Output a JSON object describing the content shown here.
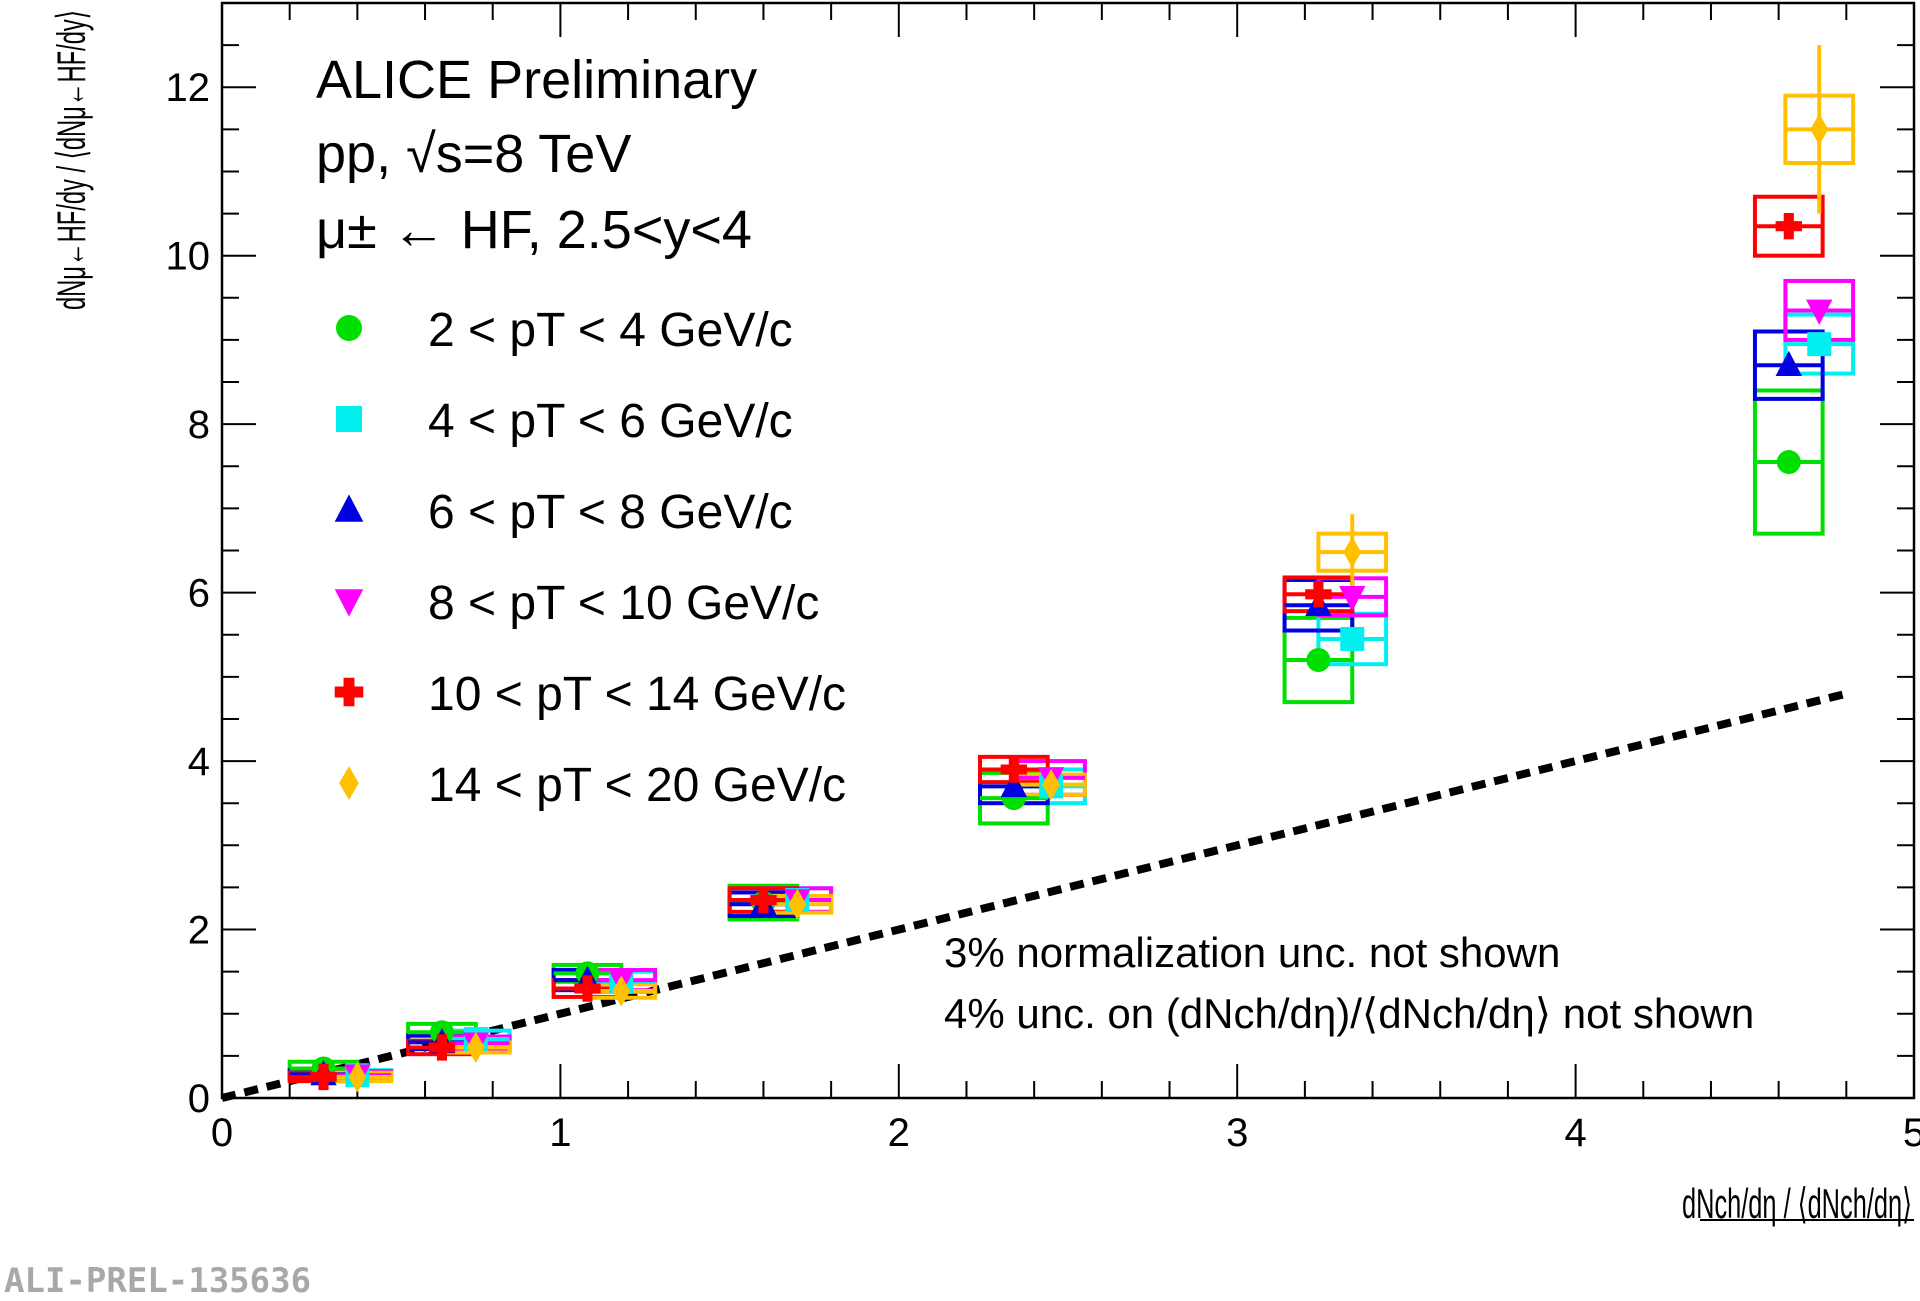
{
  "chart_data": {
    "type": "scatter",
    "title": "ALICE Preliminary",
    "subtitle_1": "pp, √s=8 TeV",
    "subtitle_2": "μ± ← HF, 2.5<y<4",
    "xlabel": "dNch/dη / ⟨dNch/dη⟩",
    "ylabel": "dNμ←HF/dy / ⟨dNμ←HF/dy⟩",
    "xlim": [
      0,
      5
    ],
    "ylim": [
      0,
      13
    ],
    "xticks": [
      "0",
      "1",
      "2",
      "3",
      "4",
      "5"
    ],
    "yticks": [
      "0",
      "2",
      "4",
      "6",
      "8",
      "10",
      "12"
    ],
    "legend_position": "top-left",
    "series": [
      {
        "name": "2 < pT < 4 GeV/c",
        "color": "#00e000",
        "marker": "circle",
        "x": [
          0.3,
          0.65,
          1.08,
          1.6,
          2.34,
          3.24,
          4.63
        ],
        "y": [
          0.35,
          0.78,
          1.48,
          2.32,
          3.56,
          5.2,
          7.55
        ],
        "sys": [
          0.08,
          0.1,
          0.1,
          0.2,
          0.3,
          0.5,
          0.85
        ]
      },
      {
        "name": "4 < pT < 6 GeV/c",
        "color": "#00f0f0",
        "marker": "square",
        "x": [
          0.4,
          0.75,
          1.18,
          1.7,
          2.45,
          3.34,
          4.72
        ],
        "y": [
          0.27,
          0.7,
          1.38,
          2.35,
          3.7,
          5.45,
          8.95
        ],
        "sys": [
          0.06,
          0.1,
          0.12,
          0.14,
          0.2,
          0.3,
          0.35
        ]
      },
      {
        "name": "6 < pT < 8 GeV/c",
        "color": "#0000e0",
        "marker": "triangle-up",
        "x": [
          0.3,
          0.65,
          1.08,
          1.6,
          2.34,
          3.24,
          4.63
        ],
        "y": [
          0.28,
          0.66,
          1.4,
          2.3,
          3.7,
          5.85,
          8.7
        ],
        "sys": [
          0.05,
          0.08,
          0.12,
          0.14,
          0.2,
          0.3,
          0.4
        ]
      },
      {
        "name": "8 < pT < 10 GeV/c",
        "color": "#ff00ff",
        "marker": "triangle-down",
        "x": [
          0.4,
          0.75,
          1.18,
          1.7,
          2.45,
          3.34,
          4.72
        ],
        "y": [
          0.27,
          0.65,
          1.4,
          2.35,
          3.8,
          5.95,
          9.35
        ],
        "sys": [
          0.05,
          0.08,
          0.12,
          0.14,
          0.2,
          0.22,
          0.35
        ]
      },
      {
        "name": "10 < pT < 14 GeV/c",
        "color": "#ff0000",
        "marker": "cross",
        "x": [
          0.3,
          0.65,
          1.08,
          1.6,
          2.34,
          3.24,
          4.63
        ],
        "y": [
          0.25,
          0.6,
          1.3,
          2.35,
          3.9,
          5.98,
          10.35
        ],
        "sys": [
          0.05,
          0.08,
          0.1,
          0.14,
          0.15,
          0.2,
          0.35
        ]
      },
      {
        "name": "14 < pT < 20 GeV/c",
        "color": "#ffc000",
        "marker": "diamond",
        "x": [
          0.4,
          0.75,
          1.18,
          1.7,
          2.45,
          3.34,
          4.72
        ],
        "y": [
          0.25,
          0.6,
          1.27,
          2.3,
          3.72,
          6.48,
          11.5
        ],
        "sys": [
          0.05,
          0.06,
          0.08,
          0.1,
          0.12,
          0.22,
          0.4
        ],
        "stat": [
          0.03,
          0.05,
          0.08,
          0.1,
          0.12,
          0.45,
          1.0
        ]
      }
    ],
    "reference_line": {
      "x": [
        0,
        4.8
      ],
      "y": [
        0,
        4.8
      ],
      "style": "dashed",
      "color": "#000000"
    },
    "annotations": [
      "3% normalization unc. not shown",
      "4% unc. on (dNch/dη)/⟨dNch/dη⟩ not shown"
    ],
    "watermark": "ALI-PREL-135636"
  }
}
